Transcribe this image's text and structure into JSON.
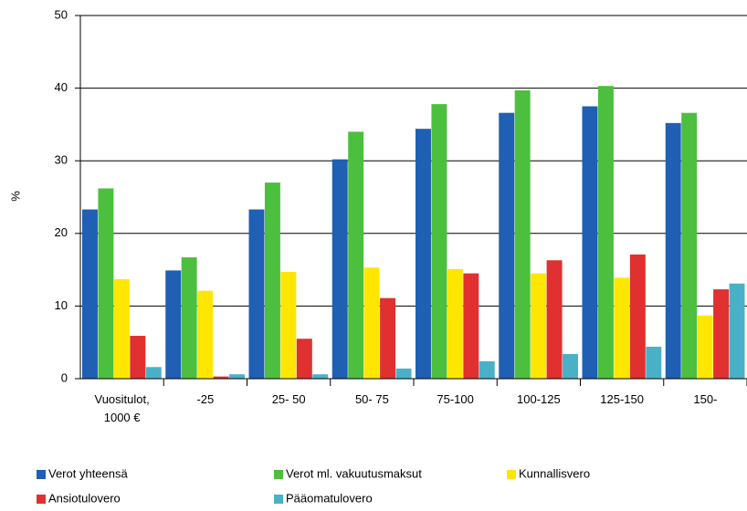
{
  "chart_data": {
    "type": "bar",
    "y_label": "%",
    "categories": [
      "Vuositulot, 1000 €",
      "-25",
      "25- 50",
      "50- 75",
      "75-100",
      "100-125",
      "125-150",
      "150-"
    ],
    "series": [
      {
        "name": "Verot yhteensä",
        "color": "#1f5fb4",
        "values": [
          23.3,
          14.9,
          23.3,
          30.2,
          34.4,
          36.6,
          37.5,
          35.2
        ]
      },
      {
        "name": "Verot ml. vakuutusmaksut",
        "color": "#4cbf3e",
        "values": [
          26.2,
          16.7,
          27.0,
          34.0,
          37.8,
          39.7,
          40.3,
          36.6
        ]
      },
      {
        "name": "Kunnallisvero",
        "color": "#ffe600",
        "values": [
          13.7,
          12.1,
          14.7,
          15.3,
          15.1,
          14.5,
          13.9,
          8.7
        ]
      },
      {
        "name": "Ansiotulovero",
        "color": "#e03030",
        "values": [
          5.9,
          0.3,
          5.5,
          11.1,
          14.5,
          16.3,
          17.1,
          12.3
        ]
      },
      {
        "name": "Pääomatulovero",
        "color": "#4ab0c8",
        "values": [
          1.6,
          0.6,
          0.6,
          1.4,
          2.4,
          3.4,
          4.4,
          13.1
        ]
      }
    ],
    "ylim": [
      0,
      50
    ],
    "yticks": [
      0,
      10,
      20,
      30,
      40,
      50
    ],
    "grid": true
  }
}
